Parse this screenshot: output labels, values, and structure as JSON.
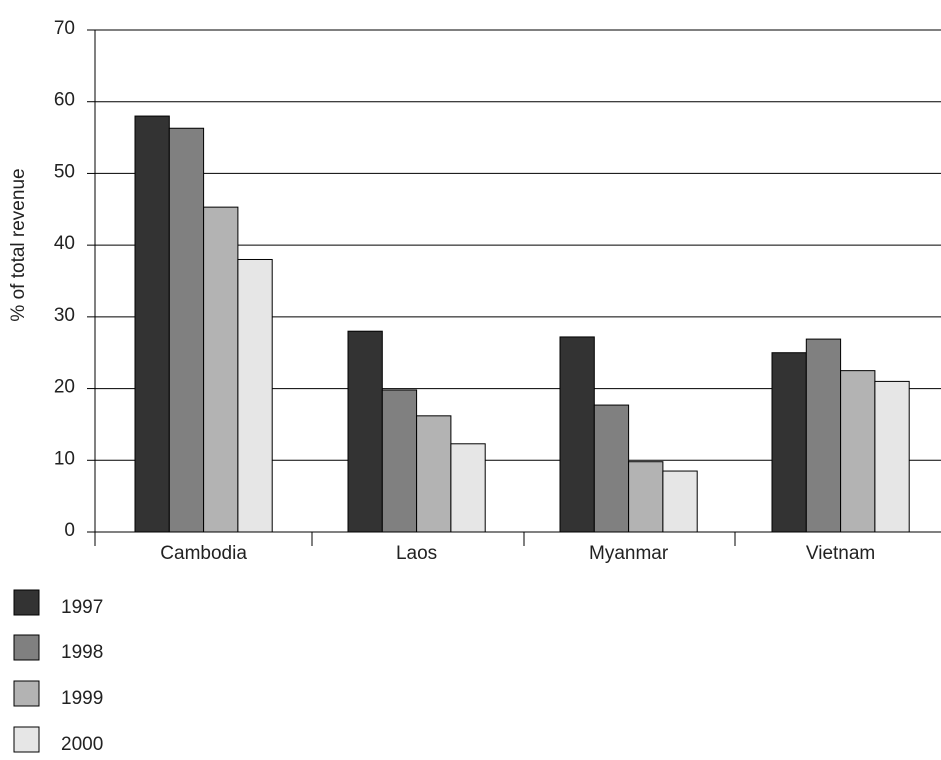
{
  "chart_data": {
    "type": "bar",
    "ylabel": "% of total revenue",
    "xlabel": "",
    "ylim": [
      0,
      70
    ],
    "yticks": [
      0,
      10,
      20,
      30,
      40,
      50,
      60,
      70
    ],
    "grid": true,
    "legend_position": "bottom-left",
    "categories": [
      "Cambodia",
      "Laos",
      "Myanmar",
      "Vietnam"
    ],
    "series": [
      {
        "name": "1997",
        "color": "#333333",
        "values": [
          58,
          28,
          27.2,
          25
        ]
      },
      {
        "name": "1998",
        "color": "#808080",
        "values": [
          56.3,
          19.8,
          17.7,
          26.9
        ]
      },
      {
        "name": "1999",
        "color": "#b3b3b3",
        "values": [
          45.3,
          16.2,
          9.8,
          22.5
        ]
      },
      {
        "name": "2000",
        "color": "#e6e6e6",
        "values": [
          38,
          12.3,
          8.5,
          21
        ]
      }
    ]
  }
}
